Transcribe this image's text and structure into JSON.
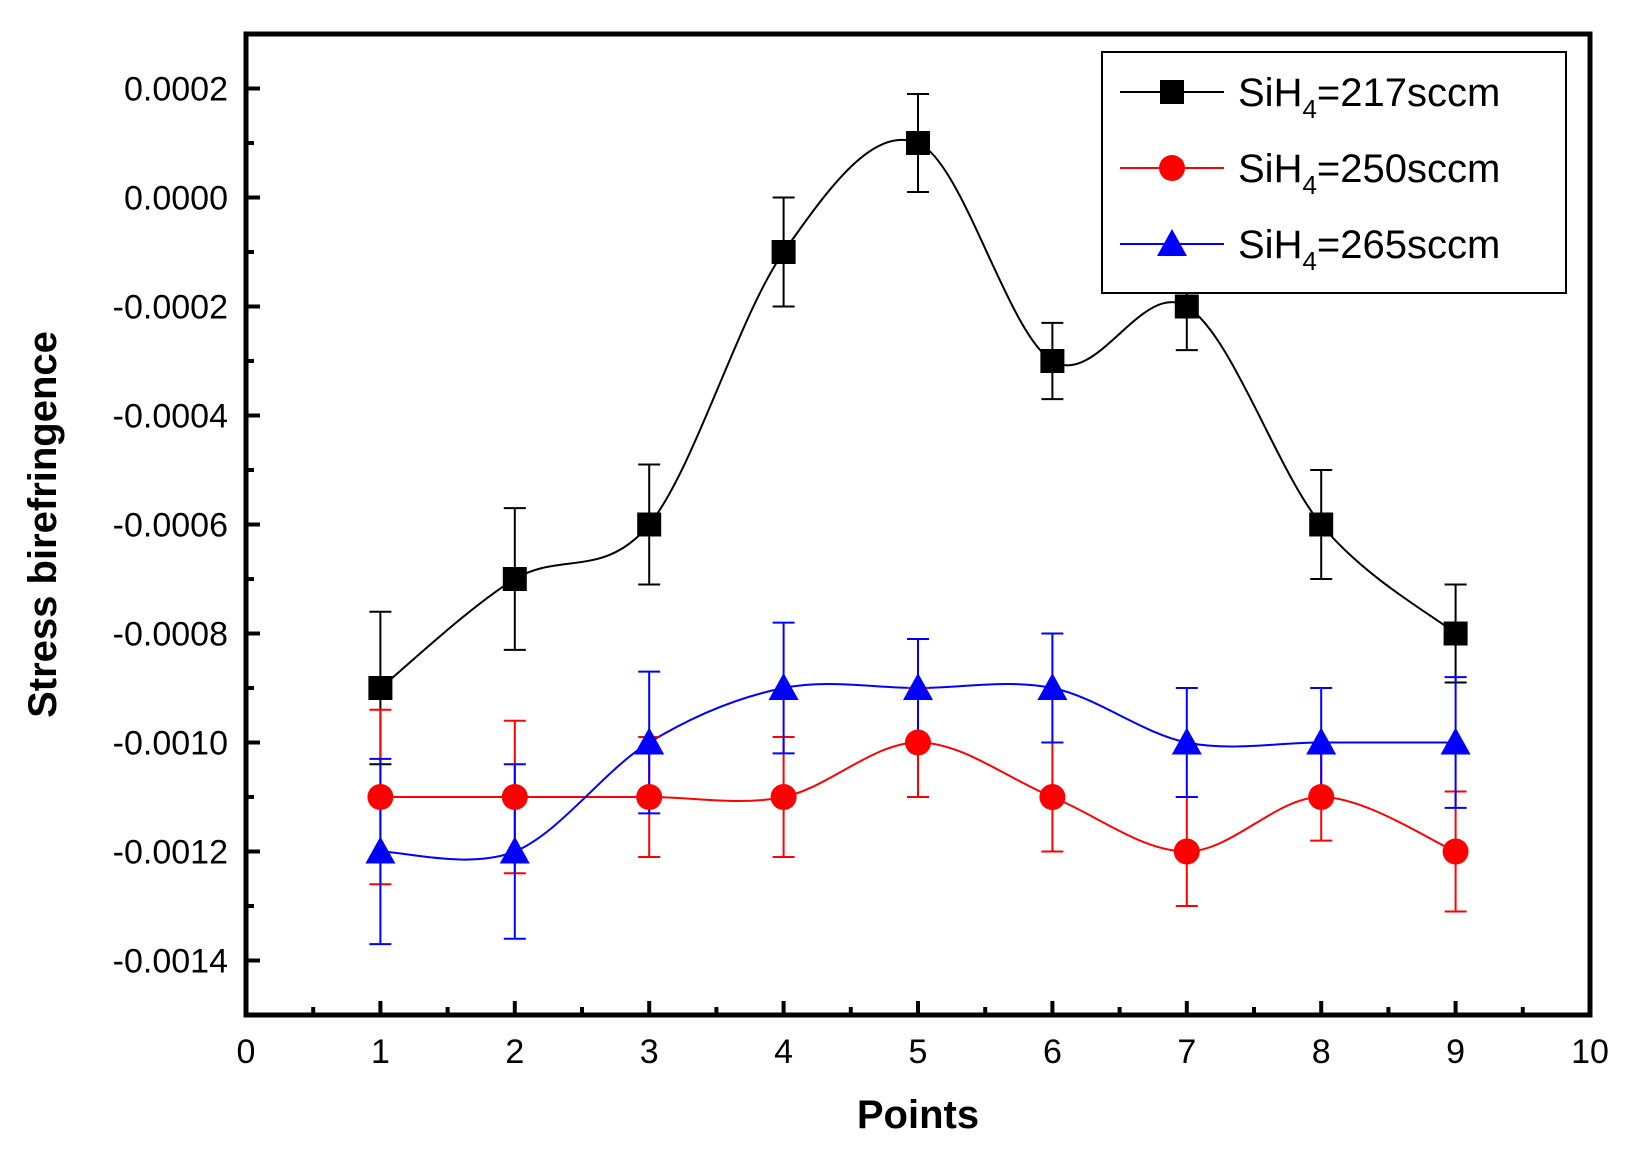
{
  "chart_data": {
    "type": "line",
    "title": "",
    "xlabel": "Points",
    "ylabel": "Stress birefringence",
    "xlim": [
      0,
      10
    ],
    "ylim": [
      -0.0015,
      0.0003
    ],
    "x_ticks": [
      {
        "value": 0,
        "label": "0"
      },
      {
        "value": 1,
        "label": "1"
      },
      {
        "value": 2,
        "label": "2"
      },
      {
        "value": 3,
        "label": "3"
      },
      {
        "value": 4,
        "label": "4"
      },
      {
        "value": 5,
        "label": "5"
      },
      {
        "value": 6,
        "label": "6"
      },
      {
        "value": 7,
        "label": "7"
      },
      {
        "value": 8,
        "label": "8"
      },
      {
        "value": 9,
        "label": "9"
      },
      {
        "value": 10,
        "label": "10"
      }
    ],
    "y_ticks": [
      {
        "value": 0.0002,
        "label": "0.0002"
      },
      {
        "value": 0.0,
        "label": "0.0000"
      },
      {
        "value": -0.0002,
        "label": "-0.0002"
      },
      {
        "value": -0.0004,
        "label": "-0.0004"
      },
      {
        "value": -0.0006,
        "label": "-0.0006"
      },
      {
        "value": -0.0008,
        "label": "-0.0008"
      },
      {
        "value": -0.001,
        "label": "-0.0010"
      },
      {
        "value": -0.0012,
        "label": "-0.0012"
      },
      {
        "value": -0.0014,
        "label": "-0.0014"
      }
    ],
    "grid": false,
    "legend_position": "top-right",
    "x": [
      1,
      2,
      3,
      4,
      5,
      6,
      7,
      8,
      9
    ],
    "series": [
      {
        "name": "SiH4=217sccm",
        "legend": {
          "prefix": "SiH",
          "sub": "4",
          "suffix": "=217sccm"
        },
        "color": "#000000",
        "marker": "square",
        "values": [
          -0.0009,
          -0.0007,
          -0.0006,
          -0.0001,
          0.0001,
          -0.0003,
          -0.0002,
          -0.0006,
          -0.0008
        ],
        "errors": [
          0.00014,
          0.00013,
          0.00011,
          0.0001,
          9e-05,
          7e-05,
          8e-05,
          0.0001,
          9e-05
        ]
      },
      {
        "name": "SiH4=250sccm",
        "legend": {
          "prefix": "SiH",
          "sub": "4",
          "suffix": "=250sccm"
        },
        "color": "#ff0000",
        "marker": "circle",
        "values": [
          -0.0011,
          -0.0011,
          -0.0011,
          -0.0011,
          -0.001,
          -0.0011,
          -0.0012,
          -0.0011,
          -0.0012
        ],
        "errors": [
          0.00016,
          0.00014,
          0.00011,
          0.00011,
          0.0001,
          0.0001,
          0.0001,
          8e-05,
          0.00011
        ]
      },
      {
        "name": "SiH4=265sccm",
        "legend": {
          "prefix": "SiH",
          "sub": "4",
          "suffix": "=265sccm"
        },
        "color": "#0000ff",
        "marker": "triangle",
        "values": [
          -0.0012,
          -0.0012,
          -0.001,
          -0.0009,
          -0.0009,
          -0.0009,
          -0.001,
          -0.001,
          -0.001
        ],
        "errors": [
          0.00017,
          0.00016,
          0.00013,
          0.00012,
          9e-05,
          0.0001,
          0.0001,
          0.0001,
          0.00012
        ]
      }
    ]
  }
}
